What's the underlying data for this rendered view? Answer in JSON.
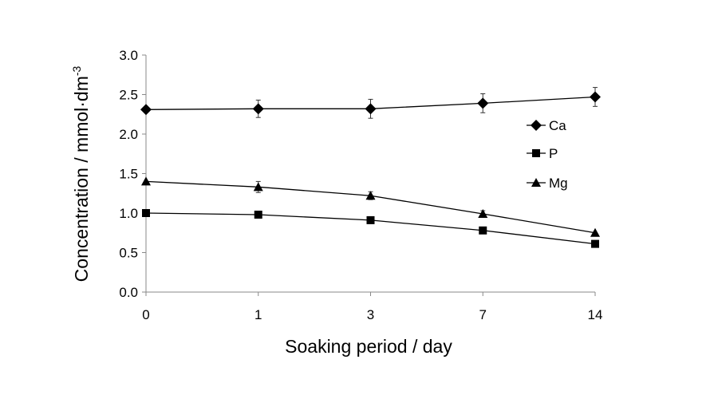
{
  "chart_data": {
    "type": "line",
    "categories": [
      "0",
      "1",
      "3",
      "7",
      "14"
    ],
    "xlabel": "Soaking period / day",
    "ylabel": "Concentration / mmol·dm",
    "ylabel_superscript": "-3",
    "ylim": [
      0,
      3.0
    ],
    "yticks": [
      "0.0",
      "0.5",
      "1.0",
      "1.5",
      "2.0",
      "2.5",
      "3.0"
    ],
    "grid": false,
    "legend": "right",
    "series": [
      {
        "name": "Ca",
        "marker": "diamond",
        "color": "#000000",
        "values": [
          2.31,
          2.32,
          2.32,
          2.39,
          2.47
        ],
        "errors": [
          0.0,
          0.11,
          0.12,
          0.12,
          0.12
        ]
      },
      {
        "name": "P",
        "marker": "square",
        "color": "#000000",
        "values": [
          1.0,
          0.98,
          0.91,
          0.78,
          0.61
        ],
        "errors": [
          0.0,
          0.0,
          0.0,
          0.0,
          0.0
        ]
      },
      {
        "name": "Mg",
        "marker": "triangle",
        "color": "#000000",
        "values": [
          1.4,
          1.33,
          1.22,
          0.99,
          0.75
        ],
        "errors": [
          0.0,
          0.07,
          0.05,
          0.04,
          0.0
        ]
      }
    ]
  }
}
